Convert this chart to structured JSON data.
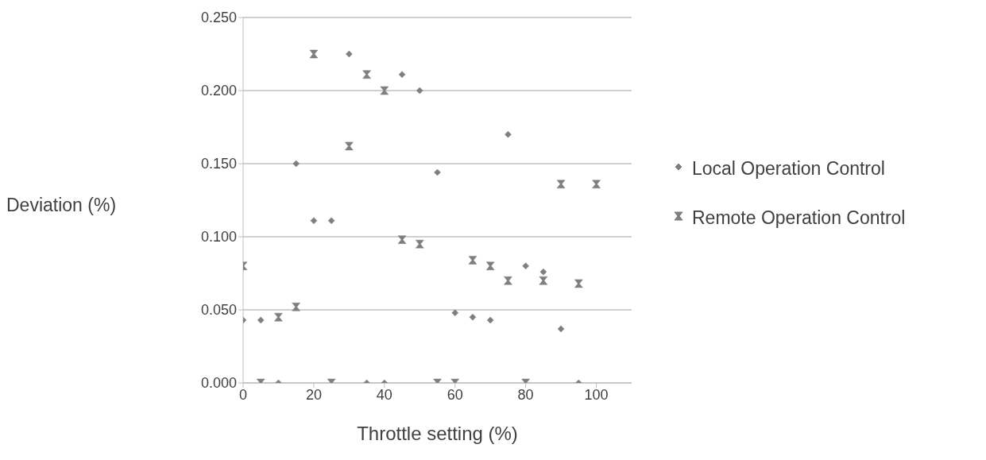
{
  "chart_data": {
    "type": "scatter",
    "xlabel": "Throttle setting (%)",
    "ylabel": "Deviation (%)",
    "xlim": [
      0,
      110
    ],
    "xticks": [
      0,
      20,
      40,
      60,
      80,
      100
    ],
    "ylim": [
      0,
      0.25
    ],
    "yticks": [
      {
        "value": 0,
        "label": "0.000"
      },
      {
        "value": 0.05,
        "label": "0.050"
      },
      {
        "value": 0.1,
        "label": "0.100"
      },
      {
        "value": 0.15,
        "label": "0.150"
      },
      {
        "value": 0.2,
        "label": "0.200"
      },
      {
        "value": 0.25,
        "label": "0.250"
      }
    ],
    "grid": "y",
    "legend": "right",
    "series": [
      {
        "name": "Local Operation Control",
        "color": "#7f7f7f",
        "marker": "diamond",
        "x": [
          0,
          5,
          10,
          15,
          20,
          25,
          30,
          35,
          40,
          45,
          50,
          55,
          60,
          65,
          70,
          75,
          80,
          85,
          90,
          95
        ],
        "values": [
          0.043,
          0.043,
          0,
          0.15,
          0.111,
          0.111,
          0.225,
          0,
          0,
          0.211,
          0.2,
          0.144,
          0.048,
          0.045,
          0.043,
          0.17,
          0.08,
          0.076,
          0.037,
          0
        ]
      },
      {
        "name": "Remote Operation Control",
        "color": "#7f7f7f",
        "marker": "cross",
        "x": [
          0,
          5,
          10,
          15,
          20,
          25,
          30,
          35,
          40,
          45,
          50,
          55,
          60,
          65,
          70,
          75,
          80,
          85,
          90,
          95,
          100
        ],
        "values": [
          0.08,
          0,
          0.045,
          0.052,
          0.225,
          0,
          0.162,
          0.211,
          0.2,
          0.098,
          0.095,
          0,
          0,
          0.084,
          0.08,
          0.07,
          0,
          0.07,
          0.136,
          0.068,
          0.136
        ]
      }
    ]
  }
}
